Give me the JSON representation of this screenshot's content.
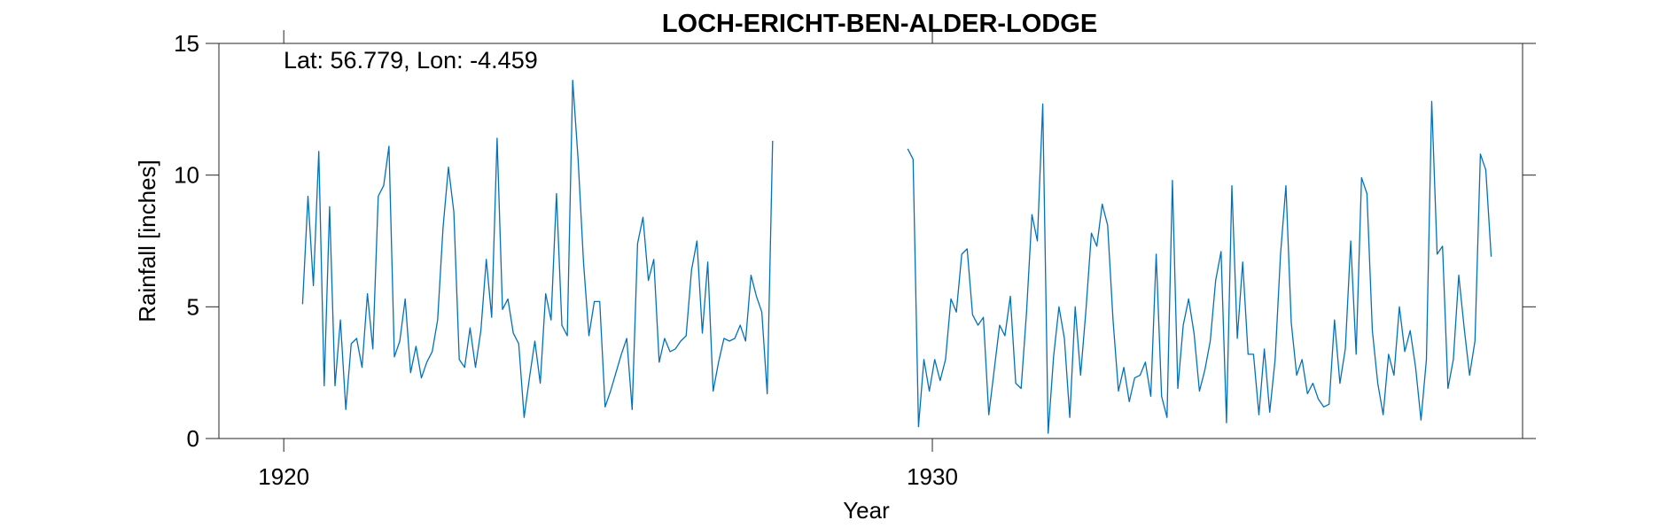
{
  "chart_data": {
    "type": "line",
    "title": "LOCH-ERICHT-BEN-ALDER-LODGE",
    "annotation": "Lat: 56.779, Lon: -4.459",
    "xlabel": "Year",
    "ylabel": "Rainfall [inches]",
    "xlim": [
      1919.0,
      1939.1
    ],
    "ylim": [
      0,
      15
    ],
    "xticks": [
      1920,
      1930
    ],
    "xtick_labels": [
      "1920",
      "1930"
    ],
    "yticks": [
      0,
      5,
      10,
      15
    ],
    "ytick_labels": [
      "0",
      "5",
      "10",
      "15"
    ],
    "grid": false,
    "color": "#0072BD",
    "series": [
      {
        "name": "",
        "segments": [
          {
            "start": 1920.29,
            "step": 0.0833,
            "values": [
              5.1,
              9.2,
              5.8,
              10.9,
              2.0,
              8.8,
              2.0,
              4.5,
              1.1,
              3.6,
              3.8,
              2.7,
              5.5,
              3.4,
              9.2,
              9.6,
              11.1,
              3.1,
              3.7,
              5.3,
              2.5,
              3.5,
              2.3,
              2.9,
              3.3,
              4.5,
              8.0,
              10.3,
              8.6,
              3.0,
              2.7,
              4.2,
              2.7,
              4.1,
              6.8,
              4.6,
              11.4,
              4.9,
              5.3,
              4.0,
              3.6,
              0.8,
              2.3,
              3.7,
              2.1,
              5.5,
              4.5,
              9.3,
              4.3,
              3.9,
              13.6,
              10.6,
              6.7,
              3.9,
              5.2,
              5.2,
              1.2,
              1.8,
              2.5,
              3.2,
              3.8,
              1.1,
              7.4,
              8.4,
              6.0,
              6.8,
              2.9,
              3.8,
              3.3,
              3.4,
              3.7,
              3.9,
              6.4,
              7.5,
              4.0,
              6.7,
              1.8,
              2.9,
              3.8,
              3.7,
              3.8,
              4.3,
              3.7,
              6.2,
              5.4,
              4.8,
              1.7,
              11.3
            ]
          },
          {
            "start": 1929.62,
            "step": 0.0833,
            "values": [
              11.0,
              10.6,
              0.45,
              3.0,
              1.8,
              3.0,
              2.2,
              3.0,
              5.3,
              4.8,
              7.0,
              7.2,
              4.7,
              4.3,
              4.6,
              0.9,
              2.6,
              4.3,
              3.9,
              5.4,
              2.1,
              1.9,
              4.8,
              8.5,
              7.5,
              12.7,
              0.2,
              3.1,
              5.0,
              3.8,
              0.8,
              5.0,
              2.4,
              4.9,
              7.8,
              7.3,
              8.9,
              8.1,
              4.5,
              1.8,
              2.7,
              1.4,
              2.3,
              2.4,
              2.9,
              1.6,
              7.0,
              1.6,
              0.8,
              9.8,
              1.9,
              4.3,
              5.3,
              4.0,
              1.8,
              2.6,
              3.7,
              6.0,
              7.1,
              0.6,
              9.6,
              3.8,
              6.7,
              3.2,
              3.2,
              0.9,
              3.4,
              1.0,
              3.0,
              7.0,
              9.6,
              4.4,
              2.4,
              3.0,
              1.7,
              2.1,
              1.5,
              1.2,
              1.3,
              4.5,
              2.1,
              3.4,
              7.5,
              3.2,
              9.9,
              9.3,
              4.1,
              2.1,
              0.9,
              3.2,
              2.4,
              5.0,
              3.3,
              4.1,
              2.7,
              0.7,
              3.0,
              12.8,
              7.0,
              7.3,
              1.9,
              3.0,
              6.2,
              4.2,
              2.4,
              3.7,
              10.8,
              10.2,
              6.9
            ]
          }
        ]
      }
    ]
  }
}
